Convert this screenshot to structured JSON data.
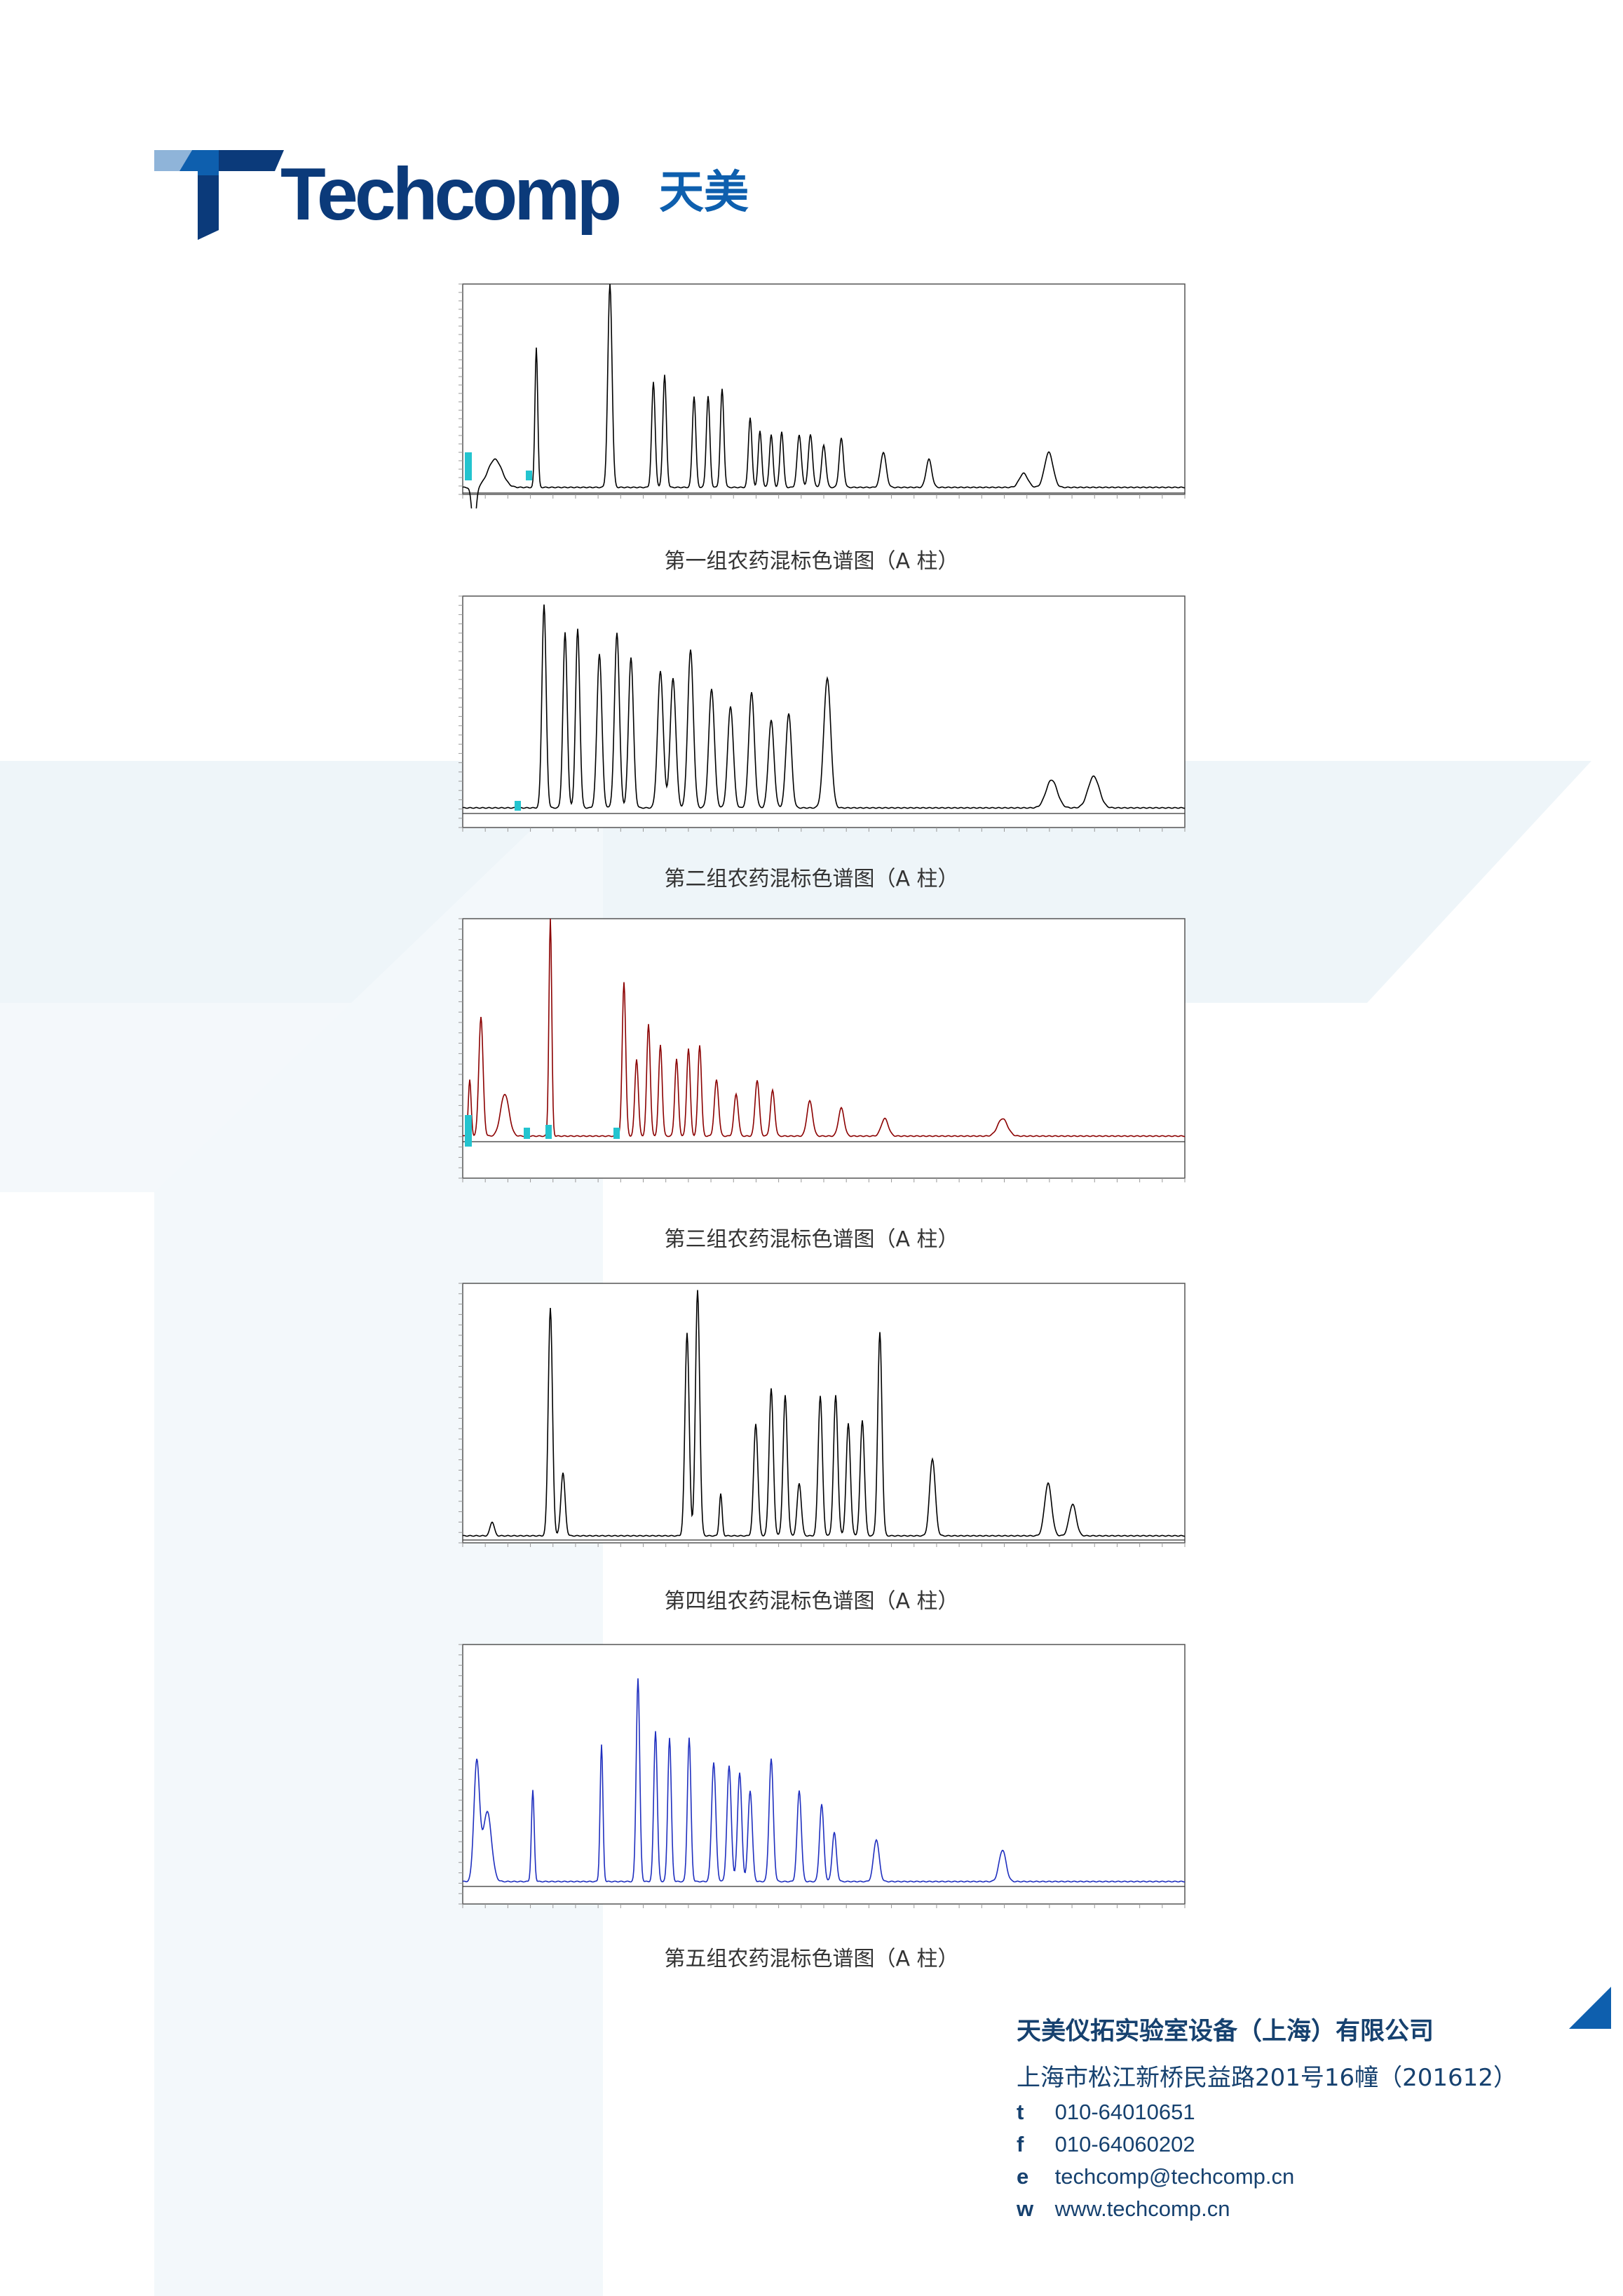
{
  "brand": {
    "name": "Techcomp",
    "name_cn": "天美",
    "colors": {
      "dark_blue": "#0b3a7a",
      "mid_blue": "#0e5fae",
      "light_blue": "#8fb4d9",
      "bg_tint": "#edf4f8"
    }
  },
  "charts": [
    {
      "caption": "第一组农药混标色谱图（A 柱）",
      "trace_color": "#000000"
    },
    {
      "caption": "第二组农药混标色谱图（A 柱）",
      "trace_color": "#000000"
    },
    {
      "caption": "第三组农药混标色谱图（A 柱）",
      "trace_color": "#8b0000"
    },
    {
      "caption": "第四组农药混标色谱图（A 柱）",
      "trace_color": "#000000"
    },
    {
      "caption": "第五组农药混标色谱图（A 柱）",
      "trace_color": "#1f2fbf"
    }
  ],
  "company": {
    "name": "天美仪拓实验室设备（上海）有限公司",
    "address": "上海市松江新桥民益路201号16幢（201612）",
    "contacts": [
      {
        "key": "t",
        "value": "010-64010651"
      },
      {
        "key": "f",
        "value": "010-64060202"
      },
      {
        "key": "e",
        "value": "techcomp@techcomp.cn"
      },
      {
        "key": "w",
        "value": "www.techcomp.cn"
      }
    ]
  }
}
